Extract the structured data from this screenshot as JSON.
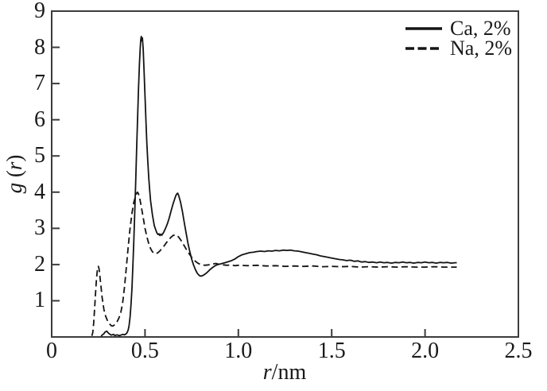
{
  "page": {
    "background": "#ffffff"
  },
  "chart_data": {
    "type": "line",
    "title": "",
    "xlabel": {
      "var": "r",
      "rest": "/nm"
    },
    "ylabel": {
      "var": "g",
      "open": " (",
      "arg": "r",
      "close": ")"
    },
    "axes": {
      "x": {
        "min": 0,
        "max": 2.5,
        "tick_values": [
          0,
          0.5,
          1.0,
          1.5,
          2.0,
          2.5
        ],
        "tick_labels": [
          "0",
          "0.5",
          "1.0",
          "1.5",
          "2.0",
          "2.5"
        ],
        "tick_marks": [
          0.5,
          1.0,
          1.5,
          2.0
        ]
      },
      "y": {
        "min": 0,
        "max": 9,
        "tick_values": [
          1,
          2,
          3,
          4,
          5,
          6,
          7,
          8,
          9
        ],
        "tick_labels": [
          "1",
          "2",
          "3",
          "4",
          "5",
          "6",
          "7",
          "8",
          "9"
        ],
        "tick_marks": [
          1,
          2,
          3,
          4,
          5,
          6,
          7,
          8
        ]
      }
    },
    "grid": false,
    "frame_color": "#3c3c3c",
    "legend": {
      "position": "top-right",
      "entries": [
        {
          "label": "Ca, 2%",
          "line": "solid"
        },
        {
          "label": "Na, 2%",
          "line": "dashed"
        }
      ]
    },
    "series": [
      {
        "name": "Ca, 2%",
        "style": "solid",
        "color": "#141414",
        "points": [
          [
            0.265,
            0.02
          ],
          [
            0.27,
            0.05
          ],
          [
            0.28,
            0.09
          ],
          [
            0.285,
            0.13
          ],
          [
            0.29,
            0.15
          ],
          [
            0.295,
            0.16
          ],
          [
            0.3,
            0.13
          ],
          [
            0.31,
            0.08
          ],
          [
            0.32,
            0.05
          ],
          [
            0.33,
            0.07
          ],
          [
            0.34,
            0.04
          ],
          [
            0.35,
            0.06
          ],
          [
            0.36,
            0.04
          ],
          [
            0.37,
            0.05
          ],
          [
            0.38,
            0.07
          ],
          [
            0.39,
            0.06
          ],
          [
            0.4,
            0.09
          ],
          [
            0.405,
            0.13
          ],
          [
            0.41,
            0.2
          ],
          [
            0.415,
            0.32
          ],
          [
            0.42,
            0.55
          ],
          [
            0.425,
            0.9
          ],
          [
            0.43,
            1.35
          ],
          [
            0.435,
            1.95
          ],
          [
            0.44,
            2.65
          ],
          [
            0.445,
            3.45
          ],
          [
            0.45,
            4.3
          ],
          [
            0.455,
            5.15
          ],
          [
            0.46,
            6.0
          ],
          [
            0.465,
            6.85
          ],
          [
            0.47,
            7.55
          ],
          [
            0.474,
            7.95
          ],
          [
            0.477,
            8.2
          ],
          [
            0.48,
            8.3
          ],
          [
            0.483,
            8.18
          ],
          [
            0.486,
            8.26
          ],
          [
            0.49,
            7.95
          ],
          [
            0.495,
            7.35
          ],
          [
            0.5,
            6.65
          ],
          [
            0.505,
            5.95
          ],
          [
            0.51,
            5.35
          ],
          [
            0.515,
            4.85
          ],
          [
            0.52,
            4.4
          ],
          [
            0.525,
            4.05
          ],
          [
            0.53,
            3.76
          ],
          [
            0.54,
            3.36
          ],
          [
            0.55,
            3.07
          ],
          [
            0.56,
            2.92
          ],
          [
            0.565,
            2.86
          ],
          [
            0.57,
            2.83
          ],
          [
            0.575,
            2.85
          ],
          [
            0.58,
            2.8
          ],
          [
            0.585,
            2.84
          ],
          [
            0.59,
            2.81
          ],
          [
            0.6,
            2.89
          ],
          [
            0.61,
            3.0
          ],
          [
            0.62,
            3.13
          ],
          [
            0.63,
            3.29
          ],
          [
            0.64,
            3.49
          ],
          [
            0.65,
            3.67
          ],
          [
            0.66,
            3.83
          ],
          [
            0.665,
            3.9
          ],
          [
            0.67,
            3.95
          ],
          [
            0.675,
            3.97
          ],
          [
            0.68,
            3.91
          ],
          [
            0.69,
            3.73
          ],
          [
            0.7,
            3.47
          ],
          [
            0.71,
            3.17
          ],
          [
            0.72,
            2.87
          ],
          [
            0.73,
            2.59
          ],
          [
            0.74,
            2.35
          ],
          [
            0.75,
            2.15
          ],
          [
            0.76,
            1.99
          ],
          [
            0.77,
            1.86
          ],
          [
            0.78,
            1.76
          ],
          [
            0.79,
            1.7
          ],
          [
            0.8,
            1.68
          ],
          [
            0.81,
            1.7
          ],
          [
            0.82,
            1.73
          ],
          [
            0.83,
            1.77
          ],
          [
            0.84,
            1.82
          ],
          [
            0.85,
            1.87
          ],
          [
            0.86,
            1.91
          ],
          [
            0.87,
            1.95
          ],
          [
            0.88,
            1.98
          ],
          [
            0.89,
            2.0
          ],
          [
            0.9,
            2.01
          ],
          [
            0.92,
            2.04
          ],
          [
            0.94,
            2.07
          ],
          [
            0.96,
            2.1
          ],
          [
            0.98,
            2.15
          ],
          [
            1.0,
            2.22
          ],
          [
            1.02,
            2.27
          ],
          [
            1.04,
            2.3
          ],
          [
            1.06,
            2.33
          ],
          [
            1.08,
            2.34
          ],
          [
            1.1,
            2.36
          ],
          [
            1.12,
            2.37
          ],
          [
            1.14,
            2.36
          ],
          [
            1.16,
            2.38
          ],
          [
            1.18,
            2.37
          ],
          [
            1.2,
            2.39
          ],
          [
            1.22,
            2.38
          ],
          [
            1.24,
            2.4
          ],
          [
            1.26,
            2.39
          ],
          [
            1.28,
            2.4
          ],
          [
            1.3,
            2.38
          ],
          [
            1.32,
            2.37
          ],
          [
            1.34,
            2.35
          ],
          [
            1.36,
            2.33
          ],
          [
            1.38,
            2.31
          ],
          [
            1.4,
            2.29
          ],
          [
            1.42,
            2.27
          ],
          [
            1.44,
            2.24
          ],
          [
            1.46,
            2.22
          ],
          [
            1.48,
            2.2
          ],
          [
            1.5,
            2.18
          ],
          [
            1.52,
            2.16
          ],
          [
            1.54,
            2.14
          ],
          [
            1.56,
            2.13
          ],
          [
            1.58,
            2.11
          ],
          [
            1.6,
            2.12
          ],
          [
            1.62,
            2.09
          ],
          [
            1.64,
            2.1
          ],
          [
            1.66,
            2.07
          ],
          [
            1.68,
            2.08
          ],
          [
            1.7,
            2.06
          ],
          [
            1.72,
            2.07
          ],
          [
            1.74,
            2.05
          ],
          [
            1.76,
            2.07
          ],
          [
            1.78,
            2.05
          ],
          [
            1.8,
            2.06
          ],
          [
            1.82,
            2.04
          ],
          [
            1.84,
            2.06
          ],
          [
            1.86,
            2.05
          ],
          [
            1.88,
            2.07
          ],
          [
            1.9,
            2.05
          ],
          [
            1.92,
            2.06
          ],
          [
            1.94,
            2.04
          ],
          [
            1.96,
            2.06
          ],
          [
            1.98,
            2.05
          ],
          [
            2.0,
            2.07
          ],
          [
            2.02,
            2.05
          ],
          [
            2.04,
            2.06
          ],
          [
            2.06,
            2.04
          ],
          [
            2.08,
            2.06
          ],
          [
            2.1,
            2.05
          ],
          [
            2.12,
            2.06
          ],
          [
            2.14,
            2.04
          ],
          [
            2.16,
            2.05
          ],
          [
            2.17,
            2.05
          ]
        ]
      },
      {
        "name": "Na, 2%",
        "style": "dashed",
        "color": "#141414",
        "points": [
          [
            0.215,
            0.03
          ],
          [
            0.22,
            0.12
          ],
          [
            0.225,
            0.38
          ],
          [
            0.23,
            0.78
          ],
          [
            0.235,
            1.22
          ],
          [
            0.24,
            1.62
          ],
          [
            0.245,
            1.86
          ],
          [
            0.248,
            1.94
          ],
          [
            0.25,
            1.95
          ],
          [
            0.253,
            1.9
          ],
          [
            0.256,
            1.8
          ],
          [
            0.26,
            1.6
          ],
          [
            0.265,
            1.36
          ],
          [
            0.27,
            1.1
          ],
          [
            0.275,
            0.92
          ],
          [
            0.28,
            0.76
          ],
          [
            0.285,
            0.65
          ],
          [
            0.29,
            0.56
          ],
          [
            0.3,
            0.44
          ],
          [
            0.31,
            0.36
          ],
          [
            0.32,
            0.31
          ],
          [
            0.325,
            0.3
          ],
          [
            0.33,
            0.31
          ],
          [
            0.34,
            0.35
          ],
          [
            0.35,
            0.42
          ],
          [
            0.36,
            0.52
          ],
          [
            0.37,
            0.67
          ],
          [
            0.38,
            0.93
          ],
          [
            0.39,
            1.38
          ],
          [
            0.4,
            1.92
          ],
          [
            0.41,
            2.5
          ],
          [
            0.42,
            3.0
          ],
          [
            0.43,
            3.42
          ],
          [
            0.44,
            3.72
          ],
          [
            0.45,
            3.9
          ],
          [
            0.455,
            3.97
          ],
          [
            0.46,
            4.0
          ],
          [
            0.465,
            3.95
          ],
          [
            0.47,
            3.87
          ],
          [
            0.48,
            3.6
          ],
          [
            0.49,
            3.3
          ],
          [
            0.5,
            3.0
          ],
          [
            0.51,
            2.77
          ],
          [
            0.52,
            2.58
          ],
          [
            0.53,
            2.44
          ],
          [
            0.54,
            2.35
          ],
          [
            0.55,
            2.31
          ],
          [
            0.56,
            2.3
          ],
          [
            0.57,
            2.33
          ],
          [
            0.58,
            2.38
          ],
          [
            0.59,
            2.44
          ],
          [
            0.6,
            2.5
          ],
          [
            0.61,
            2.57
          ],
          [
            0.62,
            2.64
          ],
          [
            0.63,
            2.7
          ],
          [
            0.64,
            2.76
          ],
          [
            0.65,
            2.8
          ],
          [
            0.66,
            2.82
          ],
          [
            0.67,
            2.81
          ],
          [
            0.68,
            2.76
          ],
          [
            0.69,
            2.69
          ],
          [
            0.7,
            2.61
          ],
          [
            0.71,
            2.52
          ],
          [
            0.72,
            2.43
          ],
          [
            0.73,
            2.35
          ],
          [
            0.74,
            2.27
          ],
          [
            0.75,
            2.2
          ],
          [
            0.76,
            2.14
          ],
          [
            0.77,
            2.09
          ],
          [
            0.78,
            2.05
          ],
          [
            0.79,
            2.02
          ],
          [
            0.8,
            2.0
          ],
          [
            0.82,
            1.98
          ],
          [
            0.84,
            1.99
          ],
          [
            0.86,
            2.01
          ],
          [
            0.88,
            2.03
          ],
          [
            0.9,
            2.0
          ],
          [
            0.92,
            1.99
          ],
          [
            0.94,
            1.98
          ],
          [
            0.96,
            1.99
          ],
          [
            0.98,
            1.97
          ],
          [
            1.0,
            1.98
          ],
          [
            1.05,
            1.97
          ],
          [
            1.1,
            1.98
          ],
          [
            1.15,
            1.96
          ],
          [
            1.2,
            1.97
          ],
          [
            1.25,
            1.95
          ],
          [
            1.3,
            1.96
          ],
          [
            1.35,
            1.95
          ],
          [
            1.4,
            1.96
          ],
          [
            1.45,
            1.94
          ],
          [
            1.5,
            1.95
          ],
          [
            1.55,
            1.94
          ],
          [
            1.6,
            1.95
          ],
          [
            1.65,
            1.93
          ],
          [
            1.7,
            1.94
          ],
          [
            1.75,
            1.93
          ],
          [
            1.8,
            1.94
          ],
          [
            1.85,
            1.93
          ],
          [
            1.9,
            1.94
          ],
          [
            1.95,
            1.93
          ],
          [
            2.0,
            1.93
          ],
          [
            2.05,
            1.94
          ],
          [
            2.1,
            1.93
          ],
          [
            2.15,
            1.93
          ],
          [
            2.17,
            1.93
          ]
        ]
      }
    ]
  }
}
